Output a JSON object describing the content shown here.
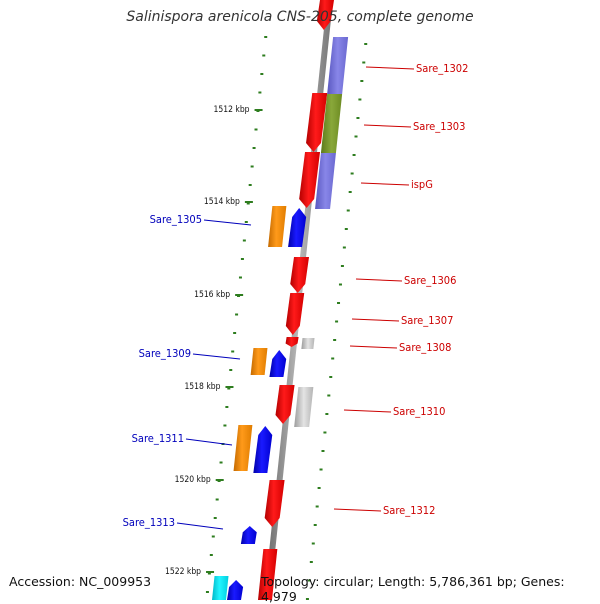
{
  "title": "Salinispora arenicola CNS-205, complete genome",
  "accession": "Accession: NC_009953",
  "topology": "Topology: circular; Length: 5,786,361 bp; Genes: 4,979",
  "colors": {
    "backbone": "#8a8a8a",
    "tick": "#2e7d1f",
    "kbp_label": "#111111",
    "forward_label": "#cc0000",
    "reverse_label": "#0000bb"
  },
  "kbp_ticks": [
    "1512 kbp",
    "1514 kbp",
    "1516 kbp",
    "1518 kbp",
    "1520 kbp",
    "1522 kbp"
  ],
  "forward_genes": [
    "Sare_1302",
    "Sare_1303",
    "ispG",
    "Sare_1306",
    "Sare_1307",
    "Sare_1308",
    "Sare_1310",
    "Sare_1312"
  ],
  "reverse_genes": [
    "Sare_1305",
    "Sare_1309",
    "Sare_1311",
    "Sare_1313"
  ]
}
